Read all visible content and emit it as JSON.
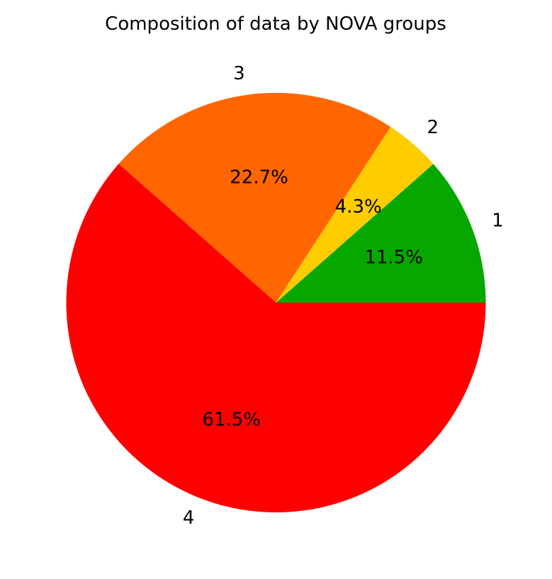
{
  "chart_data": {
    "type": "pie",
    "title": "Composition of data by NOVA groups",
    "start_angle_deg": 0,
    "direction": "counterclockwise",
    "slices": [
      {
        "label": "1",
        "value": 11.5,
        "pct_label": "11.5%",
        "color": "#06a800"
      },
      {
        "label": "2",
        "value": 4.3,
        "pct_label": "4.3%",
        "color": "#ffcc00"
      },
      {
        "label": "3",
        "value": 22.7,
        "pct_label": "22.7%",
        "color": "#ff6600"
      },
      {
        "label": "4",
        "value": 61.5,
        "pct_label": "61.5%",
        "color": "#ff0000"
      }
    ]
  }
}
